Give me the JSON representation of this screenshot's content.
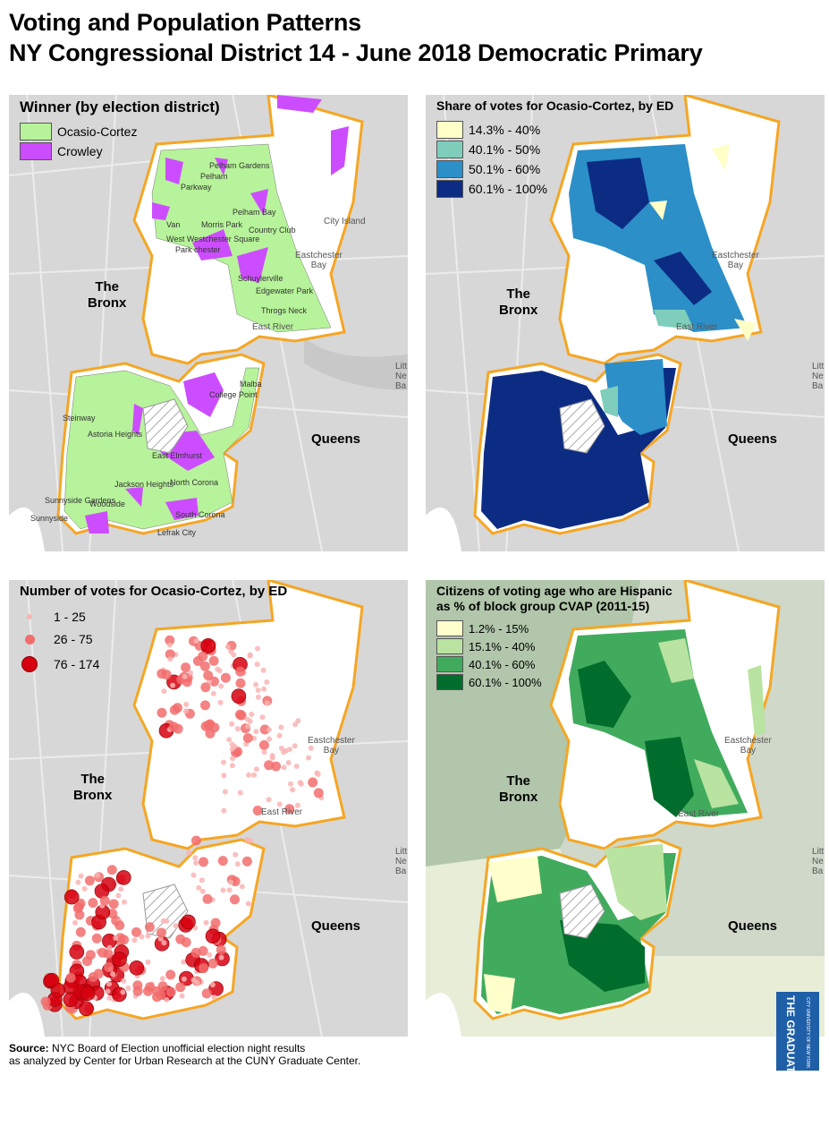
{
  "title": {
    "line1": "Voting and Population Patterns",
    "line2": "NY Congressional District 14 - June 2018 Democratic Primary"
  },
  "places": {
    "bronx": "The\nBronx",
    "queens": "Queens"
  },
  "water_labels": {
    "eastchester": "Eastchester\nBay",
    "east_river": "East River",
    "city_island": "City Island",
    "little_neck": "Litt\nNe\nBa"
  },
  "neighborhoods": [
    "Pelham Gardens",
    "Pelham",
    "Parkway",
    "Pelham Bay",
    "Morris Park",
    "Country Club",
    "West Westchester Square",
    "Park chester",
    "Van",
    "Schuylerville",
    "Edgewater Park",
    "Throgs Neck",
    "Malba",
    "College Point",
    "Steinway",
    "Astoria Heights",
    "East Elmhurst",
    "Jackson Heights",
    "North Corona",
    "Sunnyside Gardens",
    "Woodside",
    "Sunnyside",
    "South Corona",
    "Lefrak City"
  ],
  "panels": [
    {
      "title": "Winner (by election district)",
      "legend": [
        {
          "label": "Ocasio-Cortez",
          "color": "#b7f39a"
        },
        {
          "label": "Crowley",
          "color": "#cc4dff"
        }
      ]
    },
    {
      "title": "Share of votes for Ocasio-Cortez, by ED",
      "legend": [
        {
          "label": "14.3% - 40%",
          "color": "#ffffc8"
        },
        {
          "label": "40.1% - 50%",
          "color": "#7fcdbb"
        },
        {
          "label": "50.1% - 60%",
          "color": "#2c8fc8"
        },
        {
          "label": "60.1% - 100%",
          "color": "#0c2c84"
        }
      ]
    },
    {
      "title": "Number of votes for Ocasio-Cortez, by ED",
      "legend": [
        {
          "label": "1 - 25",
          "color": "#f9b4b4"
        },
        {
          "label": "26 - 75",
          "color": "#f26d6d"
        },
        {
          "label": "76 - 174",
          "color": "#d7000f"
        }
      ]
    },
    {
      "title": "Citizens of voting age who are Hispanic",
      "title2": "as % of block group CVAP (2011-15)",
      "legend": [
        {
          "label": "1.2% - 15%",
          "color": "#ffffcc"
        },
        {
          "label": "15.1% - 40%",
          "color": "#b9e3a0"
        },
        {
          "label": "40.1% - 60%",
          "color": "#41ab5d"
        },
        {
          "label": "60.1% - 100%",
          "color": "#006d2c"
        }
      ]
    }
  ],
  "source": {
    "label": "Source:",
    "text": " NYC Board of Election unofficial election night results",
    "line2": "as analyzed by Center for Urban Research at the CUNY Graduate Center."
  },
  "logo": {
    "text": "THE GRADUATE CENTER",
    "sub": "CITY UNIVERSITY OF NEW YORK"
  }
}
